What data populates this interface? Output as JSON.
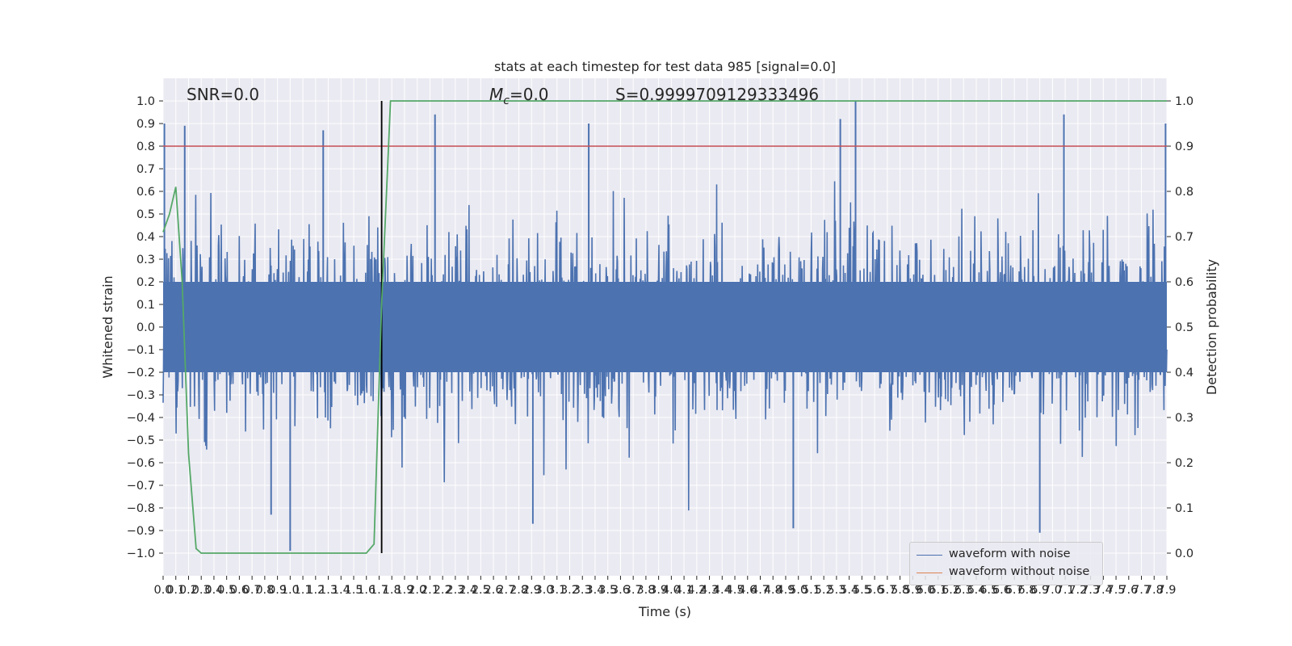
{
  "chart_data": {
    "type": "line",
    "title": "stats at each timestep for test data 985 [signal=0.0]",
    "xlabel": "Time (s)",
    "ylabel": "Whitened strain",
    "y2label": "Detection probability",
    "xlim": [
      0.0,
      7.9
    ],
    "ylim": [
      -1.1,
      1.1
    ],
    "y2lim": [
      -0.05,
      1.05
    ],
    "x_ticks": [
      0.0,
      0.1,
      0.2,
      0.3,
      0.4,
      0.5,
      0.6,
      0.7,
      0.8,
      0.9,
      1.0,
      1.1,
      1.2,
      1.3,
      1.4,
      1.5,
      1.6,
      1.7,
      1.8,
      1.9,
      2.0,
      2.1,
      2.2,
      2.3,
      2.4,
      2.5,
      2.6,
      2.7,
      2.8,
      2.9,
      3.0,
      3.1,
      3.2,
      3.3,
      3.4,
      3.5,
      3.6,
      3.7,
      3.8,
      3.9,
      4.0,
      4.1,
      4.2,
      4.3,
      4.4,
      4.5,
      4.6,
      4.7,
      4.8,
      4.9,
      5.0,
      5.1,
      5.2,
      5.3,
      5.4,
      5.5,
      5.6,
      5.7,
      5.8,
      5.9,
      6.0,
      6.1,
      6.2,
      6.3,
      6.4,
      6.5,
      6.6,
      6.7,
      6.8,
      6.9,
      7.0,
      7.1,
      7.2,
      7.3,
      7.4,
      7.5,
      7.6,
      7.7,
      7.8,
      7.9
    ],
    "y_ticks": [
      -1.0,
      -0.9,
      -0.8,
      -0.7,
      -0.6,
      -0.5,
      -0.4,
      -0.3,
      -0.2,
      -0.1,
      0.0,
      0.1,
      0.2,
      0.3,
      0.4,
      0.5,
      0.6,
      0.7,
      0.8,
      0.9,
      1.0
    ],
    "y2_ticks": [
      0.0,
      0.1,
      0.2,
      0.3,
      0.4,
      0.5,
      0.6,
      0.7,
      0.8,
      0.9,
      1.0
    ],
    "annotations": {
      "snr": "SNR=0.0",
      "mc": "=0.0",
      "mc_symbol": "M",
      "mc_sub": "c",
      "s": "S=0.9999709129333496"
    },
    "threshold_line": {
      "y2": 0.9,
      "color": "#c44e52"
    },
    "event_marker": {
      "x": 1.72,
      "ymin": -1.0,
      "ymax": 1.0,
      "color": "#000000"
    },
    "series": [
      {
        "name": "waveform with noise",
        "color": "#4c72b0",
        "kind": "noise",
        "envelope_upper_approx": 0.4,
        "envelope_lower_approx": -0.4,
        "max": 1.0,
        "min": -0.99
      },
      {
        "name": "waveform without noise",
        "color": "#dd8452",
        "values": [],
        "x": []
      },
      {
        "name": "",
        "axis": "y2",
        "color": "#55a868",
        "x": [
          0.0,
          0.05,
          0.1,
          0.15,
          0.2,
          0.26,
          0.3,
          0.5,
          0.8,
          1.0,
          1.3,
          1.5,
          1.6,
          1.66,
          1.72,
          1.79,
          1.86,
          2.0,
          3.0,
          4.0,
          5.0,
          6.0,
          7.0,
          7.9
        ],
        "values": [
          0.71,
          0.75,
          0.81,
          0.6,
          0.22,
          0.01,
          0.0,
          0.0,
          0.0,
          0.0,
          0.0,
          0.0,
          0.0,
          0.02,
          0.55,
          1.0,
          1.0,
          1.0,
          1.0,
          1.0,
          1.0,
          1.0,
          1.0,
          1.0
        ]
      }
    ],
    "grid": true,
    "legend_position": "lower right"
  }
}
